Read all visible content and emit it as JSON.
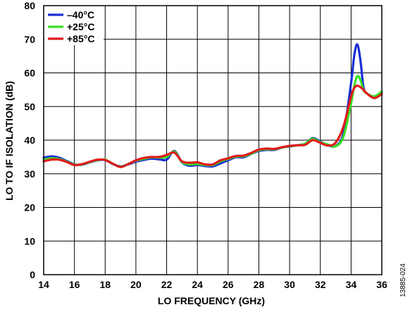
{
  "chart_data": {
    "type": "line",
    "title": "",
    "xlabel": "LO FREQUENCY (GHz)",
    "ylabel": "LO TO IF ISOLATION (dB)",
    "xlim": [
      14,
      36
    ],
    "ylim": [
      0,
      80
    ],
    "xticks": [
      14,
      16,
      18,
      20,
      22,
      24,
      26,
      28,
      30,
      32,
      34,
      36
    ],
    "yticks": [
      0,
      10,
      20,
      30,
      40,
      50,
      60,
      70,
      80
    ],
    "grid": true,
    "legend_position": "top-left",
    "figure_id": "13885-024",
    "series": [
      {
        "name": "–40°C",
        "color": "#1a2fd6",
        "x": [
          14,
          14.5,
          15,
          15.5,
          16,
          16.5,
          17,
          17.5,
          18,
          18.5,
          19,
          19.5,
          20,
          20.5,
          21,
          21.5,
          22,
          22.5,
          23,
          23.5,
          24,
          24.5,
          25,
          25.5,
          26,
          26.5,
          27,
          27.5,
          28,
          28.5,
          29,
          29.5,
          30,
          30.5,
          31,
          31.5,
          32,
          32.5,
          33,
          33.5,
          34,
          34.2,
          34.4,
          34.6,
          34.8,
          35,
          35.5,
          36
        ],
        "y": [
          34.8,
          35.2,
          34.8,
          33.8,
          32.8,
          32.7,
          33.4,
          34,
          34.1,
          32.9,
          32.2,
          32.8,
          33.6,
          34.1,
          34.5,
          34.3,
          34.2,
          36.8,
          33.4,
          32.4,
          32.6,
          32.3,
          32.2,
          33.1,
          34,
          34.9,
          34.9,
          35.9,
          36.8,
          37.1,
          37.1,
          37.8,
          38.1,
          38.5,
          38.9,
          40.6,
          39.6,
          38.5,
          38.3,
          42,
          57,
          65,
          68.5,
          64,
          56,
          54,
          53,
          54.3
        ]
      },
      {
        "name": "+25°C",
        "color": "#39e021",
        "x": [
          14,
          14.5,
          15,
          15.5,
          16,
          16.5,
          17,
          17.5,
          18,
          18.5,
          19,
          19.5,
          20,
          20.5,
          21,
          21.5,
          22,
          22.5,
          23,
          23.5,
          24,
          24.5,
          25,
          25.5,
          26,
          26.5,
          27,
          27.5,
          28,
          28.5,
          29,
          29.5,
          30,
          30.5,
          31,
          31.5,
          32,
          32.5,
          33,
          33.5,
          34,
          34.2,
          34.4,
          34.6,
          34.8,
          35,
          35.5,
          36
        ],
        "y": [
          34.2,
          34.6,
          34.4,
          33.6,
          32.7,
          32.8,
          33.5,
          34.1,
          34.2,
          33,
          32.1,
          32.9,
          33.9,
          34.4,
          34.9,
          34.8,
          35,
          36.6,
          33.5,
          32.8,
          32.9,
          32.6,
          32.6,
          33.7,
          34.4,
          35.1,
          35.2,
          36,
          37,
          37.3,
          37.3,
          37.8,
          38.2,
          38.5,
          38.9,
          40.4,
          39.4,
          38.7,
          38.2,
          41,
          51,
          56,
          59,
          58,
          55,
          54,
          53,
          54.5
        ]
      },
      {
        "name": "+85°C",
        "color": "#e01a1a",
        "x": [
          14,
          14.5,
          15,
          15.5,
          16,
          16.5,
          17,
          17.5,
          18,
          18.5,
          19,
          19.5,
          20,
          20.5,
          21,
          21.5,
          22,
          22.5,
          23,
          23.5,
          24,
          24.5,
          25,
          25.5,
          26,
          26.5,
          27,
          27.5,
          28,
          28.5,
          29,
          29.5,
          30,
          30.5,
          31,
          31.5,
          32,
          32.5,
          33,
          33.5,
          34,
          34.2,
          34.4,
          34.6,
          34.8,
          35,
          35.5,
          36
        ],
        "y": [
          33.7,
          34.2,
          34.2,
          33.5,
          32.6,
          32.9,
          33.6,
          34.2,
          34.1,
          33,
          32,
          32.9,
          34,
          34.7,
          35,
          35,
          35.6,
          36.3,
          33.7,
          33.3,
          33.4,
          32.8,
          32.8,
          34,
          34.6,
          35.3,
          35.4,
          36.2,
          37.2,
          37.5,
          37.4,
          37.9,
          38.3,
          38.5,
          38.6,
          40,
          39.2,
          38.4,
          39.3,
          44,
          53,
          55.5,
          56.2,
          55.8,
          55,
          54,
          52.5,
          53.7
        ]
      }
    ]
  }
}
